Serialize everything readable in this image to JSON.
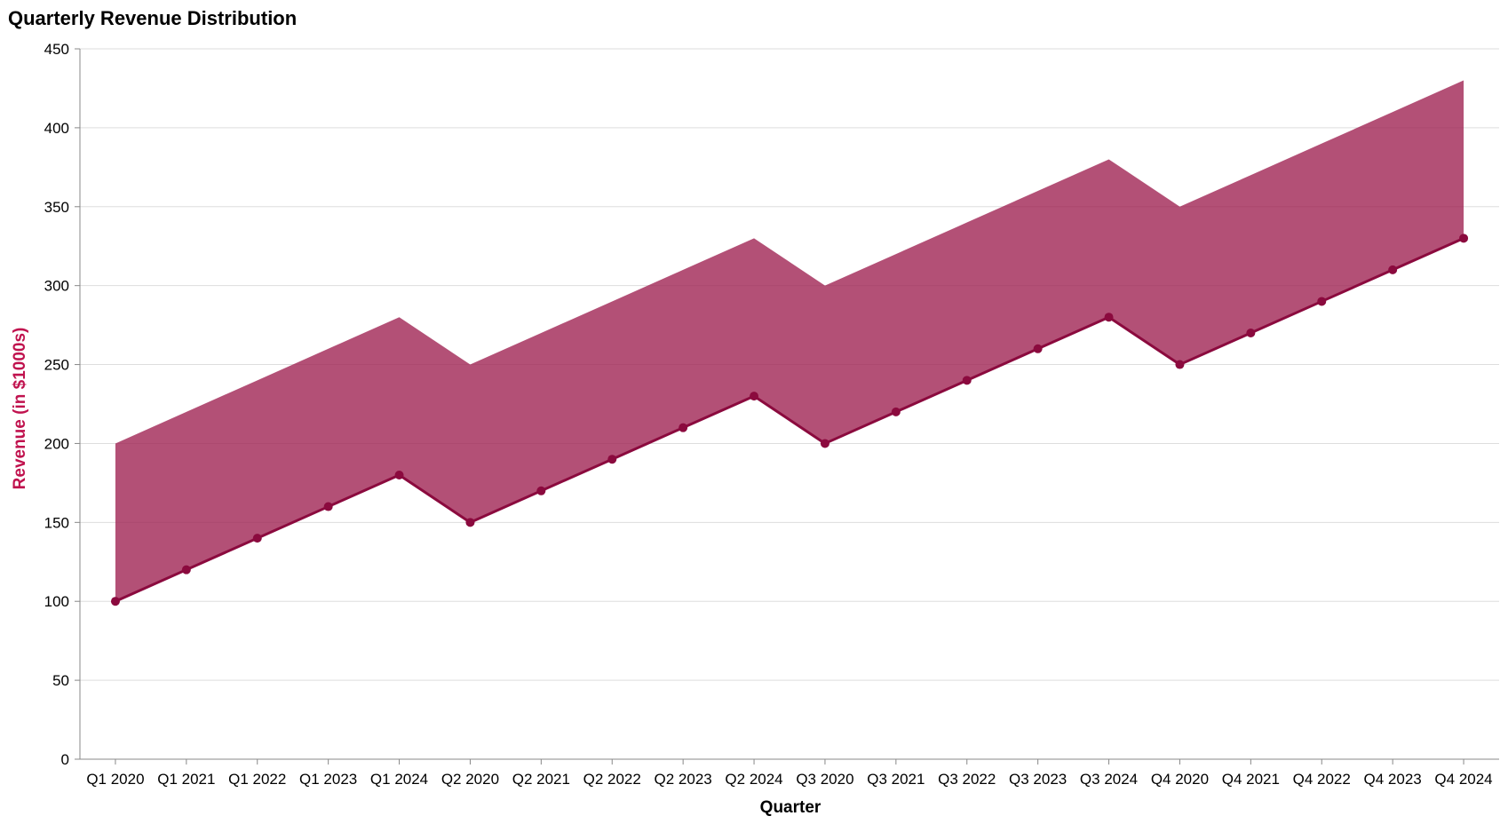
{
  "chart_data": {
    "type": "area",
    "title": "Quarterly Revenue Distribution",
    "xlabel": "Quarter",
    "ylabel": "Revenue (in $1000s)",
    "ylim": [
      0,
      450
    ],
    "yticks": [
      0,
      50,
      100,
      150,
      200,
      250,
      300,
      350,
      400,
      450
    ],
    "grid": true,
    "categories": [
      "Q1 2020",
      "Q1 2021",
      "Q1 2022",
      "Q1 2023",
      "Q1 2024",
      "Q2 2020",
      "Q2 2021",
      "Q2 2022",
      "Q2 2023",
      "Q2 2024",
      "Q3 2020",
      "Q3 2021",
      "Q3 2022",
      "Q3 2023",
      "Q3 2024",
      "Q4 2020",
      "Q4 2021",
      "Q4 2022",
      "Q4 2023",
      "Q4 2024"
    ],
    "series": [
      {
        "values": [
          100,
          120,
          140,
          160,
          180,
          150,
          170,
          190,
          210,
          230,
          200,
          220,
          240,
          260,
          280,
          250,
          270,
          290,
          310,
          330
        ]
      },
      {
        "values": [
          200,
          220,
          240,
          260,
          280,
          250,
          270,
          290,
          310,
          330,
          300,
          320,
          340,
          360,
          380,
          350,
          370,
          390,
          410,
          430
        ]
      }
    ],
    "colors": {
      "area": "#9e1f50",
      "line": "#8b0a3e",
      "ylabel": "#c0124e",
      "xlabel": "#000000"
    }
  }
}
